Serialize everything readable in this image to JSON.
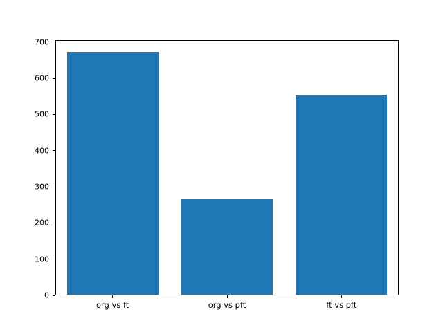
{
  "chart_data": {
    "type": "bar",
    "categories": [
      "org vs ft",
      "org vs pft",
      "ft vs pft"
    ],
    "values": [
      672,
      265,
      554
    ],
    "title": "",
    "xlabel": "",
    "ylabel": "",
    "ylim": [
      0,
      706
    ],
    "yticks": [
      0,
      100,
      200,
      300,
      400,
      500,
      600,
      700
    ],
    "grid": false,
    "legend": false,
    "bar_color": "#1f77b4",
    "background_color": "#ffffff",
    "spine_color": "#000000",
    "tick_label_color": "#000000",
    "bar_width_fraction": 0.8
  }
}
